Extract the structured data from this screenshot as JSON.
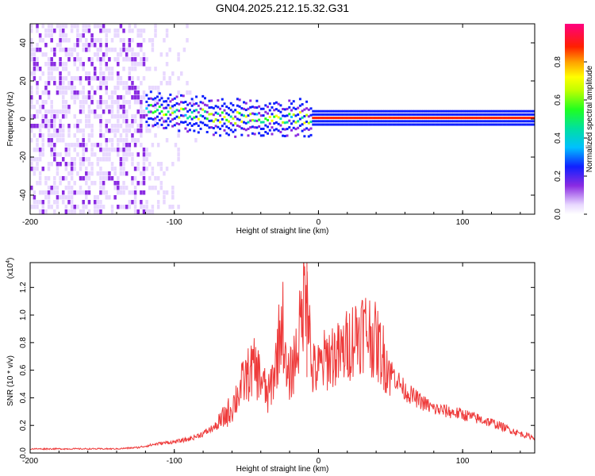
{
  "chart_data": [
    {
      "type": "heatmap",
      "title": "GN04.2025.212.15.32.G31",
      "xlabel": "Height of straight line (km)",
      "ylabel": "Frequency (Hz)",
      "xlim": [
        -200,
        150
      ],
      "ylim": [
        -50,
        50
      ],
      "xticks": [
        "-200",
        "-100",
        "0",
        "100"
      ],
      "yticks": [
        "-40",
        "-20",
        "0",
        "20",
        "40"
      ],
      "colorbar": {
        "label": "Normalized spectral amplitude",
        "range": [
          0,
          1
        ],
        "ticks": [
          "0.0",
          "0.2",
          "0.4",
          "0.6",
          "0.8"
        ]
      },
      "features": {
        "ridge_frequency_hz": 0,
        "ridge_emerges_below_height_km": -120,
        "diffuse_noise_height_range_km": [
          -200,
          -85
        ],
        "ridge_saturated_from_height_km": -5
      }
    },
    {
      "type": "line",
      "xlabel": "Height of straight line (km)",
      "ylabel": "SNR (10 * v/v)",
      "y_multiplier": "(x10",
      "y_multiplier_exp": "4",
      "xlim": [
        -200,
        150
      ],
      "ylim": [
        0,
        1.38
      ],
      "xticks": [
        "-200",
        "-100",
        "0",
        "100"
      ],
      "yticks": [
        "0.0",
        "0.2",
        "0.4",
        "0.6",
        "0.8",
        "1.0",
        "1.2"
      ],
      "series": [
        {
          "color": "#ee3b3b",
          "points": [
            [
              -200,
              0.03
            ],
            [
              -170,
              0.03
            ],
            [
              -140,
              0.03
            ],
            [
              -125,
              0.04
            ],
            [
              -110,
              0.07
            ],
            [
              -100,
              0.08
            ],
            [
              -90,
              0.1
            ],
            [
              -80,
              0.14
            ],
            [
              -70,
              0.2
            ],
            [
              -60,
              0.33
            ],
            [
              -55,
              0.45
            ],
            [
              -50,
              0.55
            ],
            [
              -45,
              0.62
            ],
            [
              -40,
              0.55
            ],
            [
              -35,
              0.4
            ],
            [
              -30,
              0.62
            ],
            [
              -25,
              1.0
            ],
            [
              -22,
              0.5
            ],
            [
              -18,
              0.62
            ],
            [
              -15,
              0.75
            ],
            [
              -12,
              0.95
            ],
            [
              -8,
              1.38
            ],
            [
              -5,
              0.6
            ],
            [
              0,
              0.6
            ],
            [
              5,
              0.68
            ],
            [
              10,
              0.72
            ],
            [
              15,
              0.7
            ],
            [
              20,
              0.78
            ],
            [
              25,
              0.85
            ],
            [
              30,
              0.9
            ],
            [
              35,
              0.88
            ],
            [
              40,
              0.8
            ],
            [
              45,
              0.7
            ],
            [
              50,
              0.6
            ],
            [
              60,
              0.45
            ],
            [
              70,
              0.38
            ],
            [
              80,
              0.32
            ],
            [
              90,
              0.3
            ],
            [
              100,
              0.28
            ],
            [
              110,
              0.25
            ],
            [
              120,
              0.22
            ],
            [
              130,
              0.18
            ],
            [
              140,
              0.14
            ],
            [
              150,
              0.11
            ]
          ]
        }
      ]
    }
  ]
}
